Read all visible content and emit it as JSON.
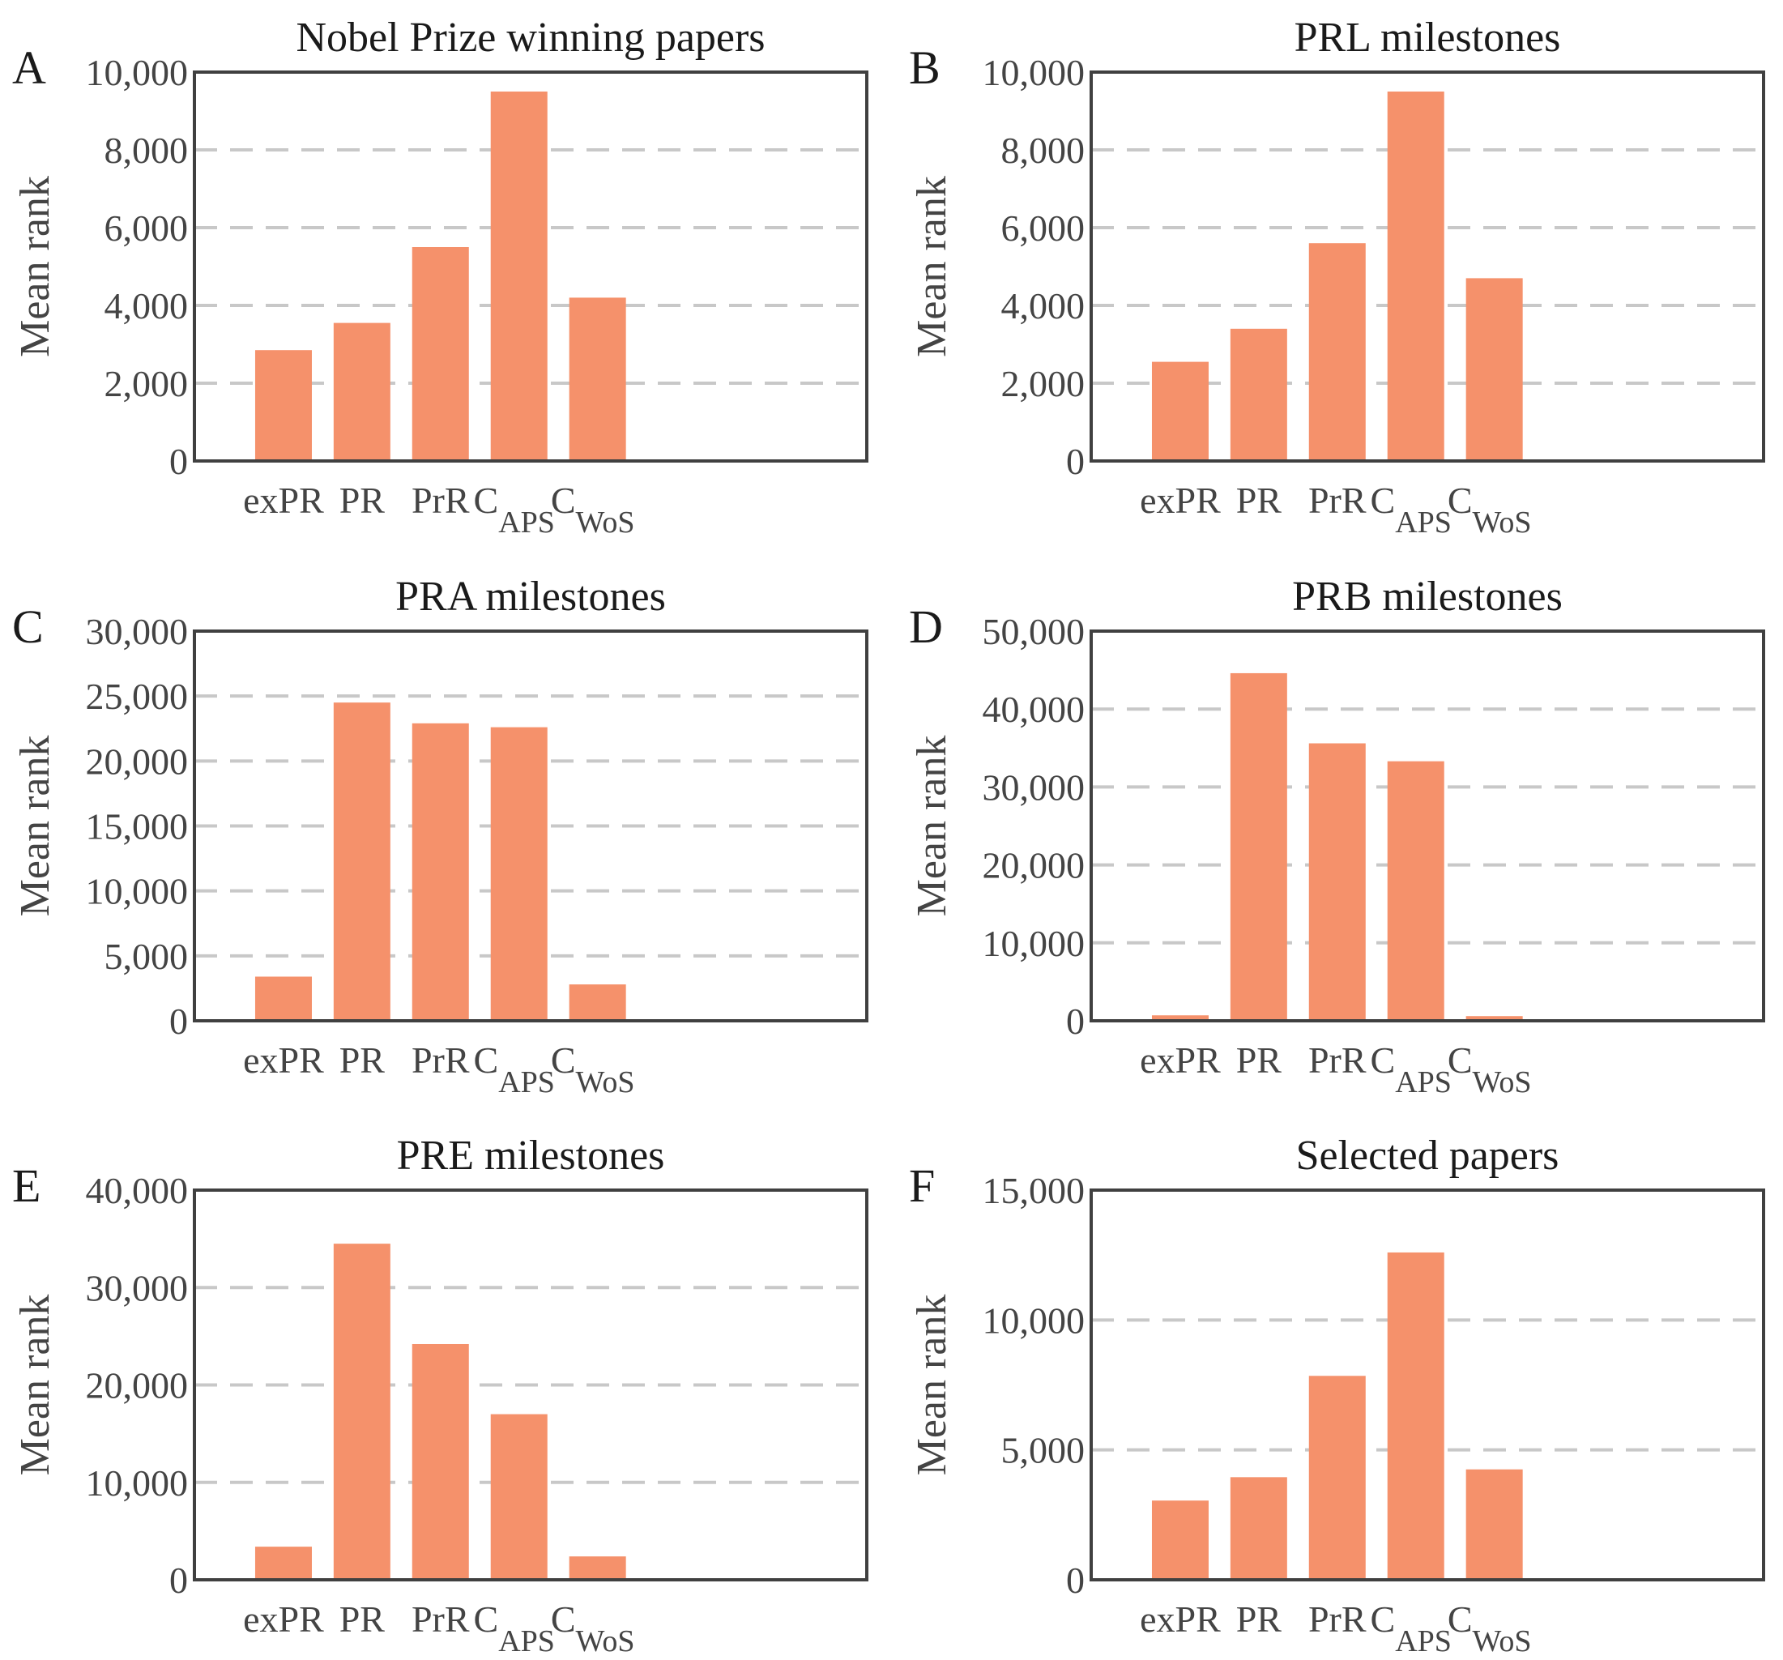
{
  "chart_data": [
    {
      "panel": "A",
      "type": "bar",
      "title": "Nobel Prize winning papers",
      "ylabel": "Mean rank",
      "ylim": [
        0,
        10000
      ],
      "yticks": [
        0,
        2000,
        4000,
        6000,
        8000,
        10000
      ],
      "ytick_labels": [
        "0",
        "2,000",
        "4,000",
        "6,000",
        "8,000",
        "10,000"
      ],
      "categories": [
        {
          "main": "exPR",
          "sub": ""
        },
        {
          "main": "PR",
          "sub": ""
        },
        {
          "main": "PrR",
          "sub": ""
        },
        {
          "main": "C",
          "sub": "APS"
        },
        {
          "main": "C",
          "sub": "WoS"
        }
      ],
      "values": [
        2850,
        3550,
        5500,
        9500,
        4200
      ]
    },
    {
      "panel": "B",
      "type": "bar",
      "title": "PRL milestones",
      "ylabel": "Mean rank",
      "ylim": [
        0,
        10000
      ],
      "yticks": [
        0,
        2000,
        4000,
        6000,
        8000,
        10000
      ],
      "ytick_labels": [
        "0",
        "2,000",
        "4,000",
        "6,000",
        "8,000",
        "10,000"
      ],
      "categories": [
        {
          "main": "exPR",
          "sub": ""
        },
        {
          "main": "PR",
          "sub": ""
        },
        {
          "main": "PrR",
          "sub": ""
        },
        {
          "main": "C",
          "sub": "APS"
        },
        {
          "main": "C",
          "sub": "WoS"
        }
      ],
      "values": [
        2550,
        3400,
        5600,
        9500,
        4700
      ]
    },
    {
      "panel": "C",
      "type": "bar",
      "title": "PRA milestones",
      "ylabel": "Mean rank",
      "ylim": [
        0,
        30000
      ],
      "yticks": [
        0,
        5000,
        10000,
        15000,
        20000,
        25000,
        30000
      ],
      "ytick_labels": [
        "0",
        "5,000",
        "10,000",
        "15,000",
        "20,000",
        "25,000",
        "30,000"
      ],
      "categories": [
        {
          "main": "exPR",
          "sub": ""
        },
        {
          "main": "PR",
          "sub": ""
        },
        {
          "main": "PrR",
          "sub": ""
        },
        {
          "main": "C",
          "sub": "APS"
        },
        {
          "main": "C",
          "sub": "WoS"
        }
      ],
      "values": [
        3400,
        24500,
        22900,
        22600,
        2800
      ]
    },
    {
      "panel": "D",
      "type": "bar",
      "title": "PRB milestones",
      "ylabel": "Mean rank",
      "ylim": [
        0,
        50000
      ],
      "yticks": [
        0,
        10000,
        20000,
        30000,
        40000,
        50000
      ],
      "ytick_labels": [
        "0",
        "10,000",
        "20,000",
        "30,000",
        "40,000",
        "50,000"
      ],
      "categories": [
        {
          "main": "exPR",
          "sub": ""
        },
        {
          "main": "PR",
          "sub": ""
        },
        {
          "main": "PrR",
          "sub": ""
        },
        {
          "main": "C",
          "sub": "APS"
        },
        {
          "main": "C",
          "sub": "WoS"
        }
      ],
      "values": [
        700,
        44600,
        35600,
        33300,
        600
      ]
    },
    {
      "panel": "E",
      "type": "bar",
      "title": "PRE milestones",
      "ylabel": "Mean rank",
      "ylim": [
        0,
        40000
      ],
      "yticks": [
        0,
        10000,
        20000,
        30000,
        40000
      ],
      "ytick_labels": [
        "0",
        "10,000",
        "20,000",
        "30,000",
        "40,000"
      ],
      "categories": [
        {
          "main": "exPR",
          "sub": ""
        },
        {
          "main": "PR",
          "sub": ""
        },
        {
          "main": "PrR",
          "sub": ""
        },
        {
          "main": "C",
          "sub": "APS"
        },
        {
          "main": "C",
          "sub": "WoS"
        }
      ],
      "values": [
        3400,
        34500,
        24200,
        17000,
        2400
      ]
    },
    {
      "panel": "F",
      "type": "bar",
      "title": "Selected papers",
      "ylabel": "Mean rank",
      "ylim": [
        0,
        15000
      ],
      "yticks": [
        0,
        5000,
        10000,
        15000
      ],
      "ytick_labels": [
        "0",
        "5,000",
        "10,000",
        "15,000"
      ],
      "categories": [
        {
          "main": "exPR",
          "sub": ""
        },
        {
          "main": "PR",
          "sub": ""
        },
        {
          "main": "PrR",
          "sub": ""
        },
        {
          "main": "C",
          "sub": "APS"
        },
        {
          "main": "C",
          "sub": "WoS"
        }
      ],
      "values": [
        3050,
        3950,
        7850,
        12600,
        4250
      ]
    }
  ],
  "colors": {
    "bar": "#F5916B",
    "grid": "#c8c8c8",
    "frame": "#404040"
  }
}
